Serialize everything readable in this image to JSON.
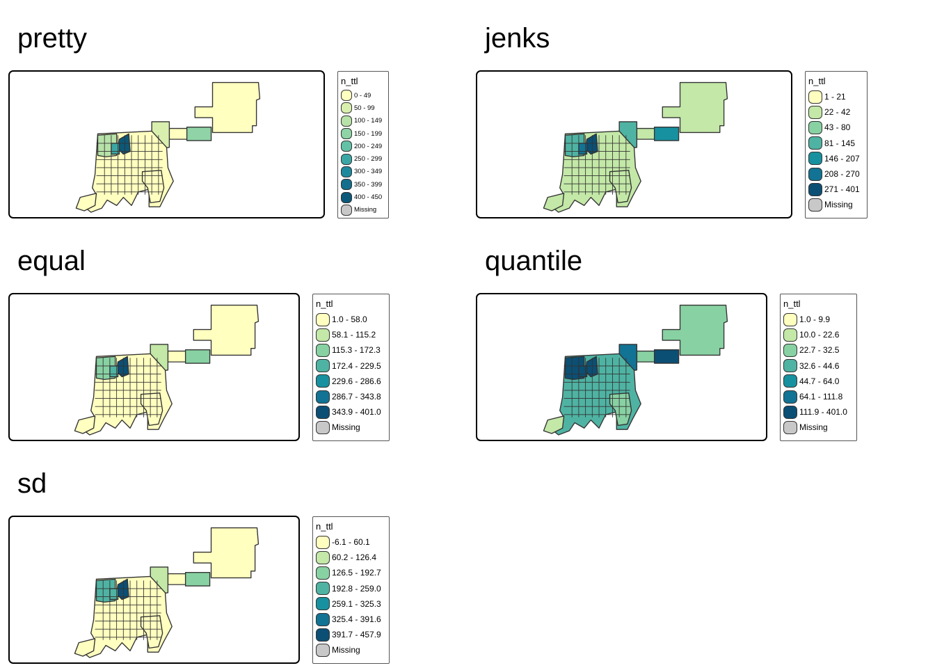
{
  "missing_color": "#c8c8c8",
  "palette9": [
    "#ffffc0",
    "#d9efae",
    "#b7e2a8",
    "#8fd3a6",
    "#63c2a6",
    "#3aa7a5",
    "#1c8a9c",
    "#146f8e",
    "#0b5878"
  ],
  "palette7": [
    "#ffffc0",
    "#c3e8a7",
    "#88d1a3",
    "#4fb3a3",
    "#17919f",
    "#127394",
    "#0b4f75"
  ],
  "panels": [
    {
      "id": "pretty",
      "title": "pretty",
      "legend_title": "n_ttl",
      "legend_size": "small",
      "palette": "palette9",
      "labels": [
        "0 - 49",
        "50 - 99",
        "100 - 149",
        "150 - 199",
        "200 - 249",
        "250 - 299",
        "300 - 349",
        "350 - 399",
        "400 - 450"
      ],
      "missing_label": "Missing",
      "zone_classes": {
        "ne": 0,
        "connector": 0,
        "east_box": 3,
        "mid": 1,
        "core": 0,
        "west_strip": 2,
        "hotspot": 8,
        "hot2": 5,
        "southeast": 0,
        "sw_tail": 0
      }
    },
    {
      "id": "jenks",
      "title": "jenks",
      "legend_title": "n_ttl",
      "legend_size": "large",
      "palette": "palette7",
      "labels": [
        "1 - 21",
        "22 - 42",
        "43 - 80",
        "81 - 145",
        "146 - 207",
        "208 - 270",
        "271 - 401"
      ],
      "missing_label": "Missing",
      "zone_classes": {
        "ne": 1,
        "connector": 1,
        "east_box": 4,
        "mid": 3,
        "core": 1,
        "west_strip": 3,
        "hotspot": 6,
        "hot2": 5,
        "southeast": 1,
        "sw_tail": 1
      }
    },
    {
      "id": "equal",
      "title": "equal",
      "legend_title": "n_ttl",
      "legend_size": "large",
      "palette": "palette7",
      "labels": [
        "1.0 - 58.0",
        "58.1 - 115.2",
        "115.3 - 172.3",
        "172.4 - 229.5",
        "229.6 - 286.6",
        "286.7 - 343.8",
        "343.9 - 401.0"
      ],
      "missing_label": "Missing",
      "zone_classes": {
        "ne": 0,
        "connector": 0,
        "east_box": 2,
        "mid": 1,
        "core": 0,
        "west_strip": 2,
        "hotspot": 6,
        "hot2": 3,
        "southeast": 0,
        "sw_tail": 0
      }
    },
    {
      "id": "quantile",
      "title": "quantile",
      "legend_title": "n_ttl",
      "legend_size": "large",
      "palette": "palette7",
      "labels": [
        "1.0 - 9.9",
        "10.0 - 22.6",
        "22.7 - 32.5",
        "32.6 - 44.6",
        "44.7 - 64.0",
        "64.1 - 111.8",
        "111.9 - 401.0"
      ],
      "missing_label": "Missing",
      "zone_classes": {
        "ne": 2,
        "connector": 2,
        "east_box": 6,
        "mid": 5,
        "core": 3,
        "west_strip": 6,
        "hotspot": 6,
        "hot2": 6,
        "southeast": 2,
        "sw_tail": 1
      }
    },
    {
      "id": "sd",
      "title": "sd",
      "legend_title": "n_ttl",
      "legend_size": "large",
      "palette": "palette7",
      "labels": [
        "-6.1 - 60.1",
        "60.2 - 126.4",
        "126.5 - 192.7",
        "192.8 - 259.0",
        "259.1 - 325.3",
        "325.4 - 391.6",
        "391.7 - 457.9"
      ],
      "missing_label": "Missing",
      "zone_classes": {
        "ne": 0,
        "connector": 0,
        "east_box": 2,
        "mid": 1,
        "core": 0,
        "west_strip": 3,
        "hotspot": 6,
        "hot2": 3,
        "southeast": 0,
        "sw_tail": 0
      }
    }
  ]
}
